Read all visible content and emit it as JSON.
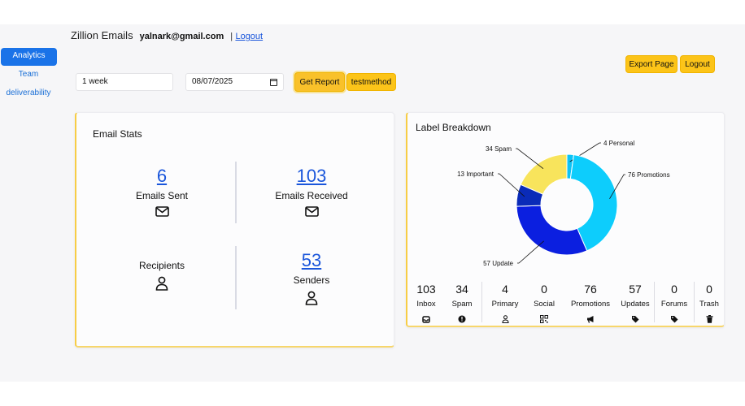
{
  "header": {
    "app_title": "Zillion Emails",
    "user_email": "yalnark@gmail.com",
    "separator": "|",
    "logout_link": "Logout"
  },
  "sidebar": {
    "items": [
      {
        "label": "Analytics",
        "active": true
      },
      {
        "label": "Team",
        "active": false
      },
      {
        "label": "deliverability",
        "active": false
      }
    ]
  },
  "controls": {
    "period_value": "1 week",
    "date_value": "08/07/2025",
    "get_report": "Get Report",
    "testmethod": "testmethod",
    "export_page": "Export Page",
    "logout_button": "Logout"
  },
  "email_stats": {
    "title": "Email Stats",
    "emails_sent": {
      "value": "6",
      "label": "Emails Sent",
      "icon": "envelope-icon"
    },
    "emails_received": {
      "value": "103",
      "label": "Emails Received",
      "icon": "envelope-icon"
    },
    "recipients": {
      "value": "",
      "label": "Recipients",
      "icon": "person-icon"
    },
    "senders": {
      "value": "53",
      "label": "Senders",
      "icon": "person-icon"
    }
  },
  "label_breakdown": {
    "title": "Label Breakdown",
    "labels": [
      {
        "count": "103",
        "name": "Inbox",
        "icon": "inbox-icon"
      },
      {
        "count": "34",
        "name": "Spam",
        "icon": "alert-circle-icon"
      },
      {
        "count": "4",
        "name": "Primary",
        "icon": "person-icon"
      },
      {
        "count": "0",
        "name": "Social",
        "icon": "qr-icon"
      },
      {
        "count": "76",
        "name": "Promotions",
        "icon": "megaphone-icon"
      },
      {
        "count": "57",
        "name": "Updates",
        "icon": "tag-icon"
      },
      {
        "count": "0",
        "name": "Forums",
        "icon": "tag-icon"
      },
      {
        "count": "0",
        "name": "Trash",
        "icon": "trash-icon"
      }
    ]
  },
  "colors": {
    "accent": "#1a73e8",
    "button_yellow": "#fcc419",
    "link_blue": "#1a56db"
  },
  "chart_data": {
    "type": "pie",
    "title": "Label Breakdown",
    "slices": [
      {
        "label": "Personal",
        "value": 4,
        "display": "4 Personal",
        "color": "#0dc3f5"
      },
      {
        "label": "Promotions",
        "value": 76,
        "display": "76 Promotions",
        "color": "#0dcdfc"
      },
      {
        "label": "Update",
        "value": 57,
        "display": "57 Update",
        "color": "#0b1fe0"
      },
      {
        "label": "Important",
        "value": 13,
        "display": "13 Important",
        "color": "#0a2bb8"
      },
      {
        "label": "Spam",
        "value": 34,
        "display": "34 Spam",
        "color": "#f8e45c"
      }
    ],
    "donut": true
  }
}
